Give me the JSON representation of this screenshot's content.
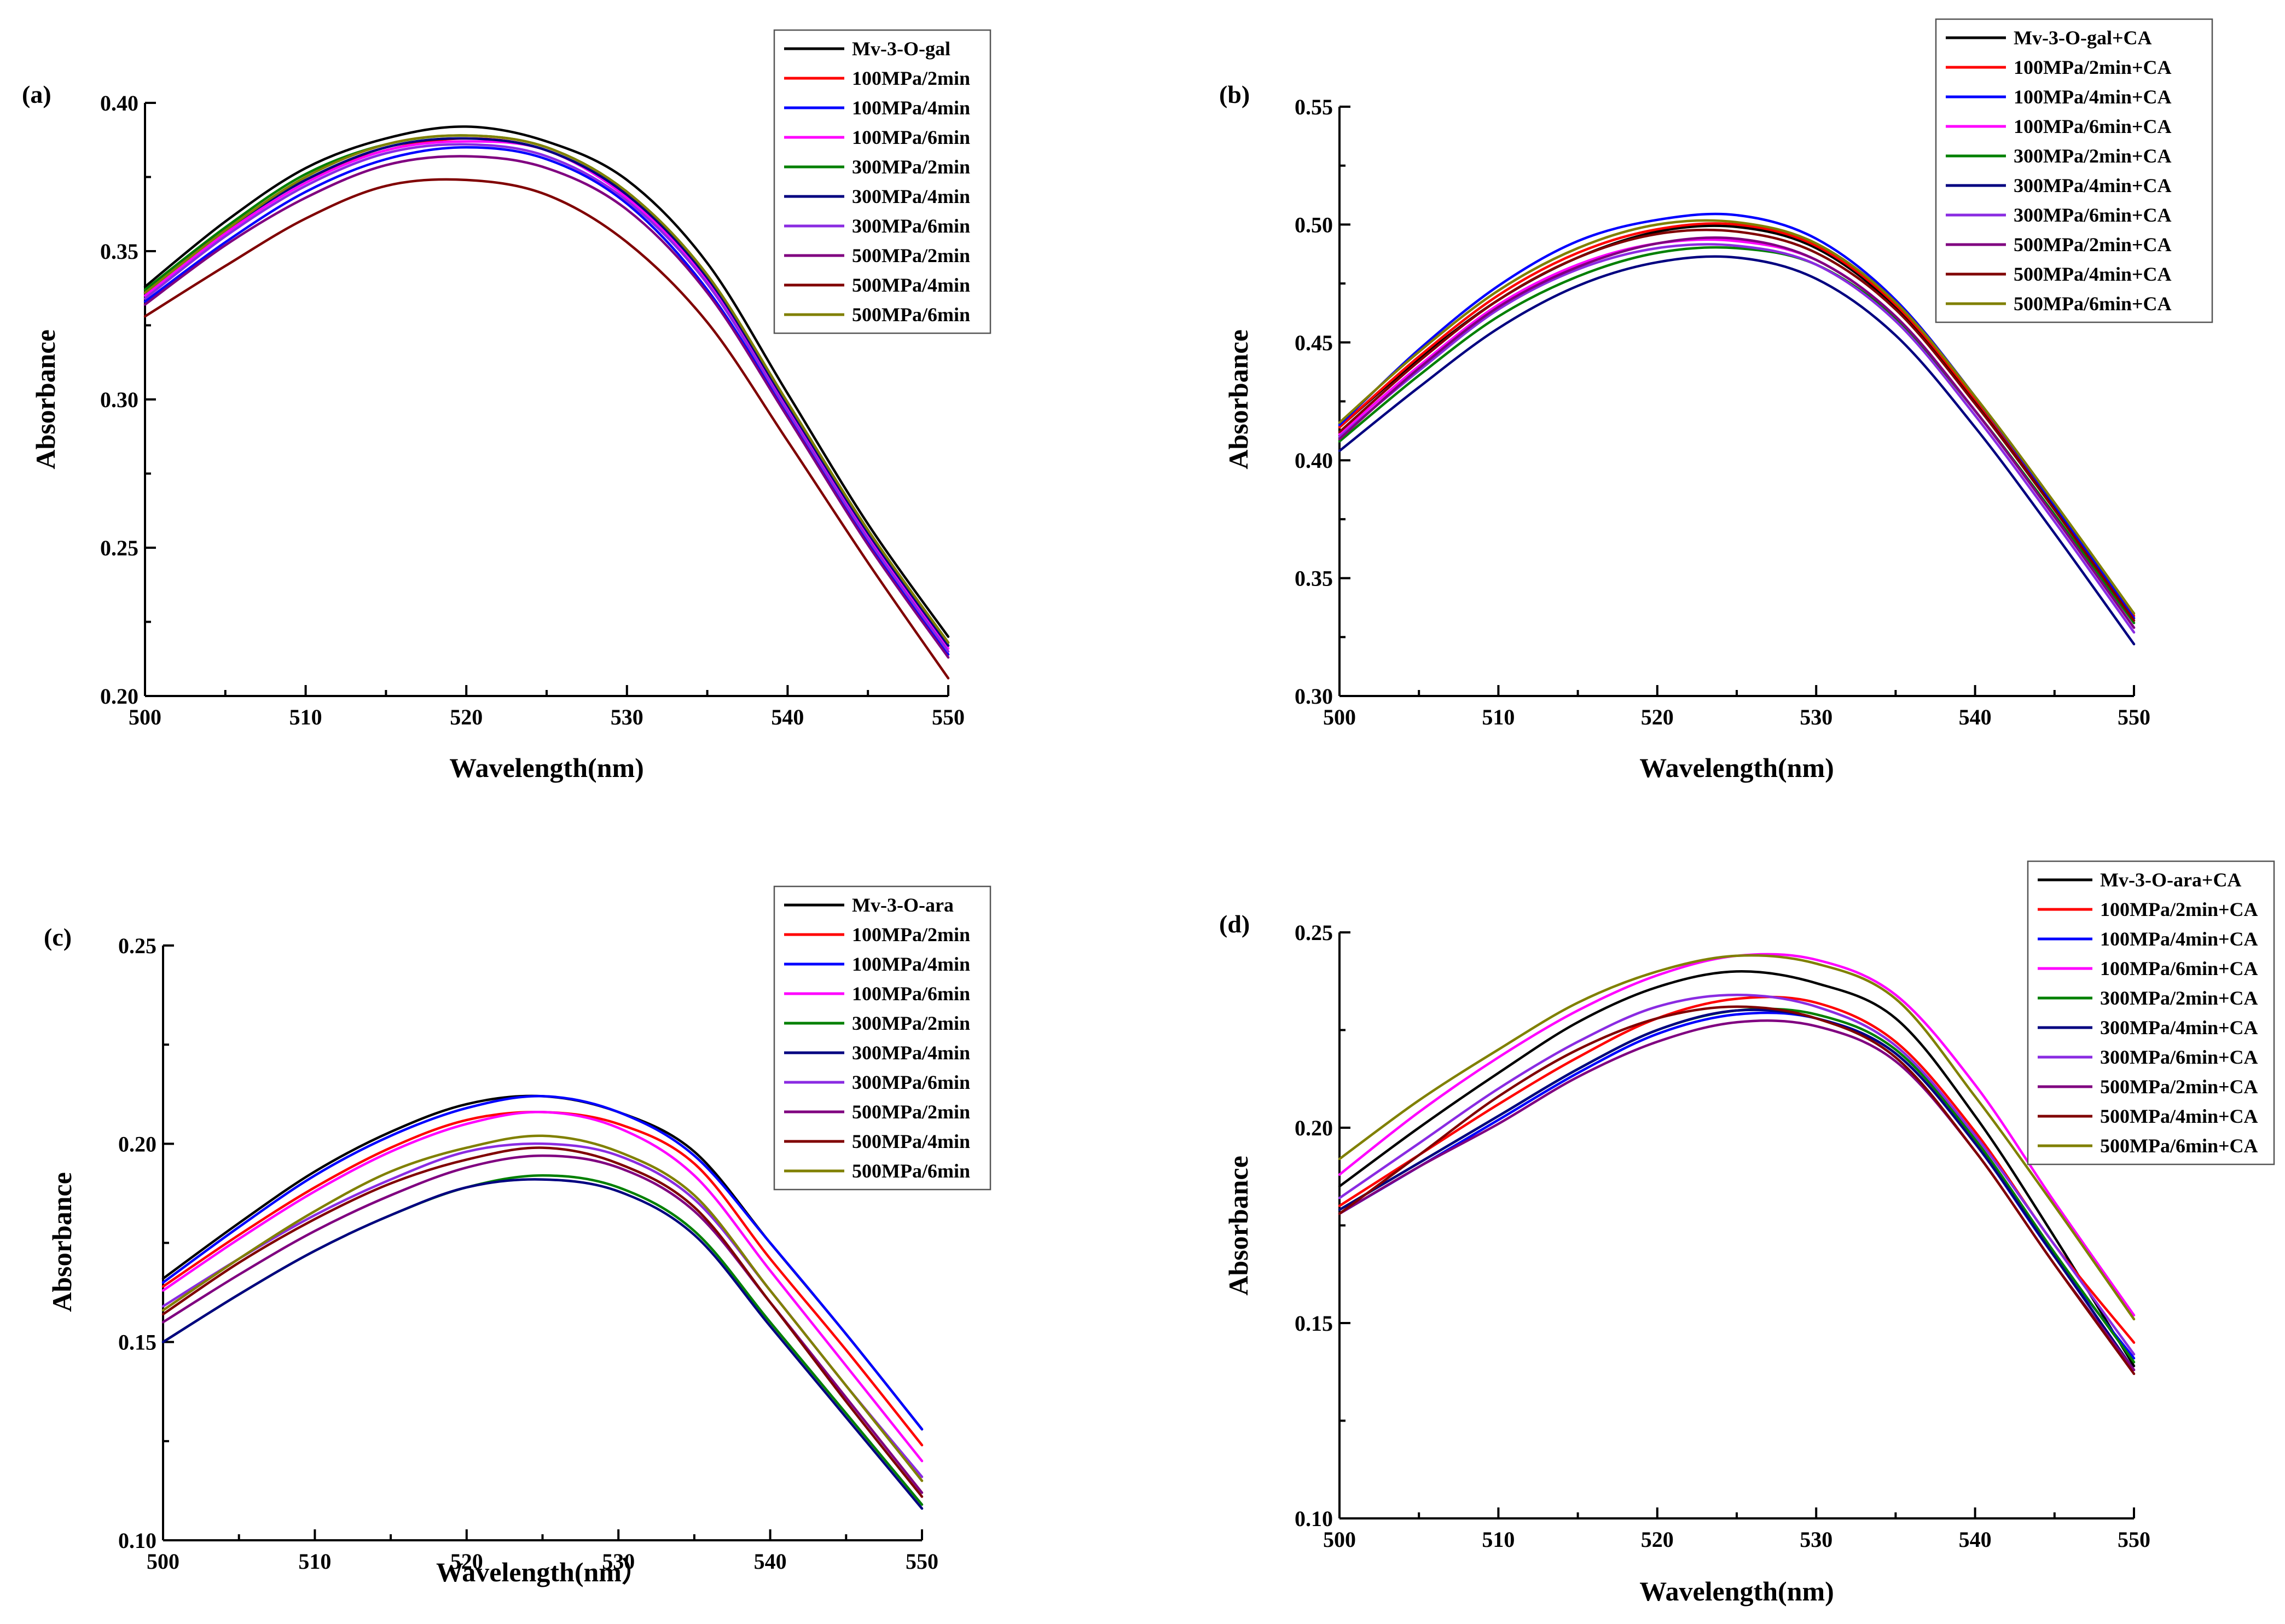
{
  "colors": {
    "black": "#000000",
    "red": "#ff0000",
    "blue": "#0000ff",
    "magenta": "#ff00ff",
    "green": "#008000",
    "navy": "#000080",
    "violet": "#8a2be2",
    "purple": "#800080",
    "maroon": "#800000",
    "olive": "#808000"
  },
  "chart_data": [
    {
      "type": "line",
      "panel_label": "(a)",
      "xlabel": "Wavelength(nm)",
      "ylabel": "Absorbance",
      "xlim": [
        500,
        550
      ],
      "ylim": [
        0.2,
        0.4
      ],
      "xticks": [
        500,
        510,
        520,
        530,
        540,
        550
      ],
      "xtick_labels": [
        "500",
        "510",
        "520",
        "530",
        "540",
        "550"
      ],
      "yticks": [
        0.2,
        0.25,
        0.3,
        0.35,
        0.4
      ],
      "ytick_labels": [
        "0.20",
        "0.25",
        "0.30",
        "0.35",
        "0.40"
      ],
      "legend_position": "top-right",
      "x": [
        500,
        505,
        510,
        515,
        520,
        525,
        530,
        535,
        540,
        545,
        550
      ],
      "series": [
        {
          "name": "Mv-3-O-gal",
          "color": "#000000",
          "values": [
            0.338,
            0.36,
            0.378,
            0.388,
            0.392,
            0.387,
            0.374,
            0.346,
            0.302,
            0.258,
            0.22
          ]
        },
        {
          "name": "100MPa/2min",
          "color": "#ff0000",
          "values": [
            0.336,
            0.357,
            0.374,
            0.384,
            0.388,
            0.384,
            0.369,
            0.341,
            0.298,
            0.255,
            0.217
          ]
        },
        {
          "name": "100MPa/4min",
          "color": "#0000ff",
          "values": [
            0.333,
            0.353,
            0.37,
            0.381,
            0.385,
            0.381,
            0.366,
            0.337,
            0.295,
            0.252,
            0.214
          ]
        },
        {
          "name": "100MPa/6min",
          "color": "#ff00ff",
          "values": [
            0.335,
            0.356,
            0.373,
            0.384,
            0.387,
            0.384,
            0.368,
            0.34,
            0.297,
            0.254,
            0.216
          ]
        },
        {
          "name": "300MPa/2min",
          "color": "#008000",
          "values": [
            0.337,
            0.358,
            0.376,
            0.386,
            0.389,
            0.385,
            0.37,
            0.342,
            0.299,
            0.256,
            0.218
          ]
        },
        {
          "name": "300MPa/4min",
          "color": "#000080",
          "values": [
            0.336,
            0.357,
            0.374,
            0.385,
            0.388,
            0.384,
            0.369,
            0.341,
            0.298,
            0.255,
            0.217
          ]
        },
        {
          "name": "300MPa/6min",
          "color": "#8a2be2",
          "values": [
            0.334,
            0.355,
            0.372,
            0.383,
            0.386,
            0.382,
            0.367,
            0.339,
            0.296,
            0.253,
            0.215
          ]
        },
        {
          "name": "500MPa/2min",
          "color": "#800080",
          "values": [
            0.332,
            0.352,
            0.368,
            0.379,
            0.382,
            0.378,
            0.364,
            0.336,
            0.294,
            0.251,
            0.213
          ]
        },
        {
          "name": "500MPa/4min",
          "color": "#800000",
          "values": [
            0.328,
            0.345,
            0.361,
            0.372,
            0.374,
            0.369,
            0.353,
            0.326,
            0.286,
            0.245,
            0.206
          ]
        },
        {
          "name": "500MPa/6min",
          "color": "#808000",
          "values": [
            0.336,
            0.357,
            0.375,
            0.386,
            0.389,
            0.385,
            0.37,
            0.342,
            0.299,
            0.256,
            0.218
          ]
        }
      ]
    },
    {
      "type": "line",
      "panel_label": "(b)",
      "xlabel": "Wavelength(nm)",
      "ylabel": "Absorbance",
      "xlim": [
        500,
        550
      ],
      "ylim": [
        0.3,
        0.55
      ],
      "xticks": [
        500,
        510,
        520,
        530,
        540,
        550
      ],
      "xtick_labels": [
        "500",
        "510",
        "520",
        "530",
        "540",
        "550"
      ],
      "yticks": [
        0.3,
        0.35,
        0.4,
        0.45,
        0.5,
        0.55
      ],
      "ytick_labels": [
        "0.30",
        "0.35",
        "0.40",
        "0.45",
        "0.50",
        "0.55"
      ],
      "legend_position": "top-right",
      "x": [
        500,
        505,
        510,
        515,
        520,
        525,
        530,
        535,
        540,
        545,
        550
      ],
      "series": [
        {
          "name": "Mv-3-O-gal+CA",
          "color": "#000000",
          "values": [
            0.414,
            0.443,
            0.468,
            0.486,
            0.497,
            0.499,
            0.49,
            0.465,
            0.425,
            0.38,
            0.333
          ]
        },
        {
          "name": "100MPa/2min+CA",
          "color": "#ff0000",
          "values": [
            0.414,
            0.444,
            0.47,
            0.488,
            0.498,
            0.5,
            0.491,
            0.466,
            0.426,
            0.381,
            0.334
          ]
        },
        {
          "name": "100MPa/4min+CA",
          "color": "#0000ff",
          "values": [
            0.415,
            0.447,
            0.474,
            0.493,
            0.502,
            0.504,
            0.494,
            0.468,
            0.427,
            0.381,
            0.333
          ]
        },
        {
          "name": "100MPa/6min+CA",
          "color": "#ff00ff",
          "values": [
            0.411,
            0.44,
            0.466,
            0.483,
            0.492,
            0.493,
            0.485,
            0.461,
            0.421,
            0.376,
            0.329
          ]
        },
        {
          "name": "300MPa/2min+CA",
          "color": "#008000",
          "values": [
            0.408,
            0.436,
            0.461,
            0.478,
            0.488,
            0.49,
            0.483,
            0.46,
            0.421,
            0.377,
            0.331
          ]
        },
        {
          "name": "300MPa/4min+CA",
          "color": "#000080",
          "values": [
            0.404,
            0.431,
            0.456,
            0.474,
            0.484,
            0.486,
            0.477,
            0.453,
            0.414,
            0.369,
            0.322
          ]
        },
        {
          "name": "300MPa/6min+CA",
          "color": "#8a2be2",
          "values": [
            0.41,
            0.438,
            0.464,
            0.481,
            0.49,
            0.491,
            0.483,
            0.459,
            0.419,
            0.374,
            0.327
          ]
        },
        {
          "name": "500MPa/2min+CA",
          "color": "#800080",
          "values": [
            0.409,
            0.439,
            0.465,
            0.482,
            0.492,
            0.494,
            0.485,
            0.461,
            0.421,
            0.376,
            0.329
          ]
        },
        {
          "name": "500MPa/4min+CA",
          "color": "#800000",
          "values": [
            0.412,
            0.442,
            0.468,
            0.486,
            0.496,
            0.497,
            0.488,
            0.464,
            0.424,
            0.379,
            0.332
          ]
        },
        {
          "name": "500MPa/6min+CA",
          "color": "#808000",
          "values": [
            0.416,
            0.446,
            0.472,
            0.49,
            0.5,
            0.501,
            0.492,
            0.467,
            0.427,
            0.382,
            0.335
          ]
        }
      ]
    },
    {
      "type": "line",
      "panel_label": "(c)",
      "xlabel": "Wavelength(nm）",
      "ylabel": "Absorbance",
      "xlim": [
        500,
        550
      ],
      "ylim": [
        0.1,
        0.25
      ],
      "xticks": [
        500,
        510,
        520,
        530,
        540,
        550
      ],
      "xtick_labels": [
        "500",
        "510",
        "520",
        "530",
        "540",
        "550"
      ],
      "yticks": [
        0.1,
        0.15,
        0.2,
        0.25
      ],
      "ytick_labels": [
        "0.10",
        "0.15",
        "0.20",
        "0.25"
      ],
      "legend_position": "top-right",
      "x": [
        500,
        505,
        510,
        515,
        520,
        525,
        530,
        535,
        540,
        545,
        550
      ],
      "series": [
        {
          "name": "Mv-3-O-ara",
          "color": "#000000",
          "values": [
            0.166,
            0.18,
            0.193,
            0.203,
            0.21,
            0.212,
            0.208,
            0.198,
            0.175,
            0.152,
            0.128
          ]
        },
        {
          "name": "100MPa/2min",
          "color": "#ff0000",
          "values": [
            0.164,
            0.177,
            0.189,
            0.199,
            0.206,
            0.208,
            0.205,
            0.195,
            0.171,
            0.148,
            0.124
          ]
        },
        {
          "name": "100MPa/4min",
          "color": "#0000ff",
          "values": [
            0.165,
            0.179,
            0.192,
            0.202,
            0.209,
            0.212,
            0.208,
            0.197,
            0.175,
            0.152,
            0.128
          ]
        },
        {
          "name": "100MPa/6min",
          "color": "#ff00ff",
          "values": [
            0.163,
            0.176,
            0.188,
            0.198,
            0.205,
            0.208,
            0.204,
            0.192,
            0.168,
            0.144,
            0.12
          ]
        },
        {
          "name": "300MPa/2min",
          "color": "#008000",
          "values": [
            0.15,
            0.162,
            0.173,
            0.182,
            0.189,
            0.192,
            0.189,
            0.178,
            0.155,
            0.132,
            0.109
          ]
        },
        {
          "name": "300MPa/4min",
          "color": "#000080",
          "values": [
            0.15,
            0.162,
            0.173,
            0.182,
            0.189,
            0.191,
            0.188,
            0.177,
            0.154,
            0.131,
            0.108
          ]
        },
        {
          "name": "300MPa/6min",
          "color": "#8a2be2",
          "values": [
            0.159,
            0.171,
            0.182,
            0.191,
            0.198,
            0.2,
            0.197,
            0.186,
            0.163,
            0.139,
            0.116
          ]
        },
        {
          "name": "500MPa/2min",
          "color": "#800080",
          "values": [
            0.155,
            0.167,
            0.178,
            0.187,
            0.194,
            0.197,
            0.194,
            0.183,
            0.16,
            0.136,
            0.112
          ]
        },
        {
          "name": "500MPa/4min",
          "color": "#800000",
          "values": [
            0.157,
            0.17,
            0.181,
            0.19,
            0.196,
            0.199,
            0.195,
            0.184,
            0.16,
            0.135,
            0.111
          ]
        },
        {
          "name": "500MPa/6min",
          "color": "#808000",
          "values": [
            0.158,
            0.171,
            0.183,
            0.193,
            0.199,
            0.202,
            0.198,
            0.187,
            0.163,
            0.139,
            0.115
          ]
        }
      ]
    },
    {
      "type": "line",
      "panel_label": "(d)",
      "xlabel": "Wavelength(nm)",
      "ylabel": "Absorbance",
      "xlim": [
        500,
        550
      ],
      "ylim": [
        0.1,
        0.25
      ],
      "xticks": [
        500,
        510,
        520,
        530,
        540,
        550
      ],
      "xtick_labels": [
        "500",
        "510",
        "520",
        "530",
        "540",
        "550"
      ],
      "yticks": [
        0.1,
        0.15,
        0.2,
        0.25
      ],
      "ytick_labels": [
        "0.10",
        "0.15",
        "0.20",
        "0.25"
      ],
      "legend_position": "top-right",
      "x": [
        500,
        505,
        510,
        515,
        520,
        525,
        530,
        535,
        540,
        545,
        550
      ],
      "series": [
        {
          "name": "Mv-3-O-ara+CA",
          "color": "#000000",
          "values": [
            0.185,
            0.2,
            0.214,
            0.227,
            0.236,
            0.24,
            0.237,
            0.228,
            0.203,
            0.172,
            0.139
          ]
        },
        {
          "name": "100MPa/2min+CA",
          "color": "#ff0000",
          "values": [
            0.18,
            0.193,
            0.206,
            0.218,
            0.228,
            0.233,
            0.232,
            0.222,
            0.199,
            0.17,
            0.145
          ]
        },
        {
          "name": "100MPa/4min+CA",
          "color": "#0000ff",
          "values": [
            0.178,
            0.19,
            0.202,
            0.214,
            0.224,
            0.229,
            0.228,
            0.219,
            0.196,
            0.167,
            0.141
          ]
        },
        {
          "name": "100MPa/6min+CA",
          "color": "#ff00ff",
          "values": [
            0.188,
            0.204,
            0.218,
            0.23,
            0.239,
            0.244,
            0.243,
            0.234,
            0.211,
            0.181,
            0.152
          ]
        },
        {
          "name": "300MPa/2min+CA",
          "color": "#008000",
          "values": [
            0.179,
            0.191,
            0.203,
            0.215,
            0.225,
            0.23,
            0.229,
            0.22,
            0.197,
            0.168,
            0.14
          ]
        },
        {
          "name": "300MPa/4min+CA",
          "color": "#000080",
          "values": [
            0.179,
            0.191,
            0.203,
            0.215,
            0.225,
            0.23,
            0.228,
            0.219,
            0.196,
            0.167,
            0.138
          ]
        },
        {
          "name": "300MPa/6min+CA",
          "color": "#8a2be2",
          "values": [
            0.182,
            0.196,
            0.21,
            0.222,
            0.231,
            0.234,
            0.231,
            0.221,
            0.198,
            0.17,
            0.142
          ]
        },
        {
          "name": "500MPa/2min+CA",
          "color": "#800080",
          "values": [
            0.178,
            0.19,
            0.201,
            0.213,
            0.222,
            0.227,
            0.226,
            0.217,
            0.194,
            0.165,
            0.138
          ]
        },
        {
          "name": "500MPa/4min+CA",
          "color": "#800000",
          "values": [
            0.178,
            0.193,
            0.208,
            0.22,
            0.228,
            0.231,
            0.228,
            0.218,
            0.194,
            0.165,
            0.137
          ]
        },
        {
          "name": "500MPa/6min+CA",
          "color": "#808000",
          "values": [
            0.192,
            0.207,
            0.22,
            0.232,
            0.24,
            0.244,
            0.242,
            0.233,
            0.208,
            0.18,
            0.151
          ]
        }
      ]
    }
  ]
}
